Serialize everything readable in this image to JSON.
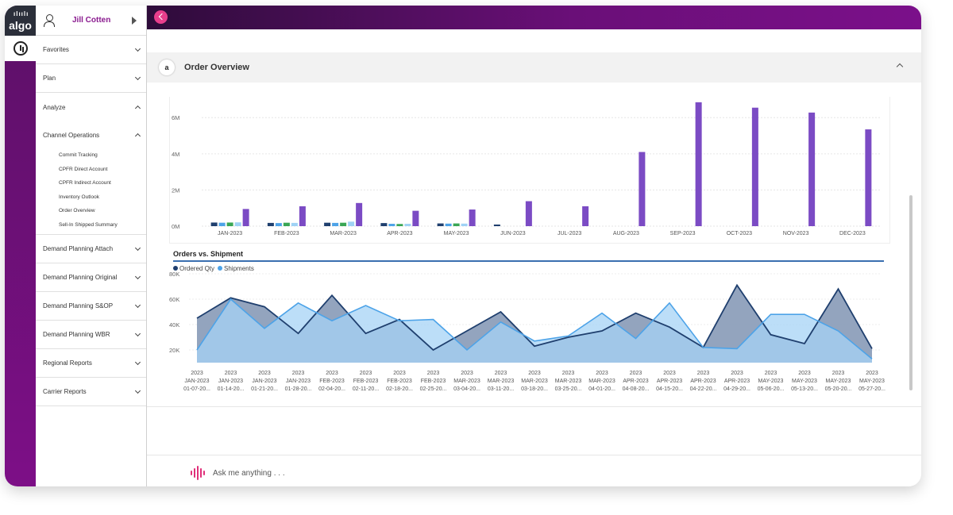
{
  "app": {
    "logo_text": "algo",
    "user_name": "Jill Cotten"
  },
  "sidebar": {
    "items": [
      {
        "label": "Favorites",
        "expanded": false
      },
      {
        "label": "Plan",
        "expanded": false
      },
      {
        "label": "Analyze",
        "expanded": true
      },
      {
        "label": "Channel Operations",
        "expanded": true,
        "children": [
          "Commit Tracking",
          "CPFR Direct Account",
          "CPFR Indirect Account",
          "Inventory Outlook",
          "Order Overview",
          "Sell-In Shipped Summary"
        ]
      },
      {
        "label": "Demand Planning Attach",
        "expanded": false
      },
      {
        "label": "Demand Planning Original",
        "expanded": false
      },
      {
        "label": "Demand Planning S&OP",
        "expanded": false
      },
      {
        "label": "Demand Planning WBR",
        "expanded": false
      },
      {
        "label": "Regional Reports",
        "expanded": false
      },
      {
        "label": "Carrier Reports",
        "expanded": false
      }
    ]
  },
  "panel": {
    "icon_text": "a",
    "title": "Order Overview"
  },
  "chat": {
    "placeholder": "Ask me anything . . ."
  },
  "colors": {
    "brand_purple": "#7a1086",
    "back_button": "#e83e8c",
    "bar_purple": "#7b4bc4",
    "ordered_qty": "#1f3f6e",
    "shipments": "#4da3e8"
  },
  "chart_data": [
    {
      "type": "bar",
      "categories": [
        "JAN-2023",
        "FEB-2023",
        "MAR-2023",
        "APR-2023",
        "MAY-2023",
        "JUN-2023",
        "JUL-2023",
        "AUG-2023",
        "SEP-2023",
        "OCT-2023",
        "NOV-2023",
        "DEC-2023"
      ],
      "yticks": [
        "0M",
        "2M",
        "4M",
        "6M"
      ],
      "ylim": [
        0,
        6800000
      ],
      "series": [
        {
          "color": "#1f3f6e",
          "values": [
            200000,
            180000,
            190000,
            170000,
            150000,
            90000,
            0,
            0,
            0,
            0,
            0,
            0
          ]
        },
        {
          "color": "#4da3e8",
          "values": [
            190000,
            170000,
            180000,
            130000,
            140000,
            0,
            0,
            0,
            0,
            0,
            0,
            0
          ]
        },
        {
          "color": "#3aa655",
          "values": [
            200000,
            190000,
            190000,
            120000,
            150000,
            0,
            0,
            0,
            0,
            0,
            0,
            0
          ]
        },
        {
          "color": "#9fd2f5",
          "values": [
            210000,
            180000,
            250000,
            130000,
            140000,
            0,
            0,
            0,
            0,
            0,
            0,
            0
          ]
        },
        {
          "color": "#7b4bc4",
          "values": [
            950000,
            1100000,
            1280000,
            850000,
            920000,
            1380000,
            1100000,
            4100000,
            6850000,
            6550000,
            6280000,
            5350000
          ]
        }
      ]
    },
    {
      "type": "area",
      "title": "Orders vs. Shipment",
      "legend_position": "top-left",
      "yticks": [
        "20K",
        "40K",
        "60K",
        "80K"
      ],
      "ylim": [
        10000,
        80000
      ],
      "categories": [
        [
          "2023",
          "JAN-2023",
          "01-07-20..."
        ],
        [
          "2023",
          "JAN-2023",
          "01-14-20..."
        ],
        [
          "2023",
          "JAN-2023",
          "01-21-20..."
        ],
        [
          "2023",
          "JAN-2023",
          "01-28-20..."
        ],
        [
          "2023",
          "FEB-2023",
          "02-04-20..."
        ],
        [
          "2023",
          "FEB-2023",
          "02-11-20..."
        ],
        [
          "2023",
          "FEB-2023",
          "02-18-20..."
        ],
        [
          "2023",
          "FEB-2023",
          "02-25-20..."
        ],
        [
          "2023",
          "MAR-2023",
          "03-04-20..."
        ],
        [
          "2023",
          "MAR-2023",
          "03-11-20..."
        ],
        [
          "2023",
          "MAR-2023",
          "03-18-20..."
        ],
        [
          "2023",
          "MAR-2023",
          "03-25-20..."
        ],
        [
          "2023",
          "MAR-2023",
          "04-01-20..."
        ],
        [
          "2023",
          "APR-2023",
          "04-08-20..."
        ],
        [
          "2023",
          "APR-2023",
          "04-15-20..."
        ],
        [
          "2023",
          "APR-2023",
          "04-22-20..."
        ],
        [
          "2023",
          "APR-2023",
          "04-29-20..."
        ],
        [
          "2023",
          "MAY-2023",
          "05-06-20..."
        ],
        [
          "2023",
          "MAY-2023",
          "05-13-20..."
        ],
        [
          "2023",
          "MAY-2023",
          "05-20-20..."
        ],
        [
          "2023",
          "MAY-2023",
          "05-27-20..."
        ]
      ],
      "series": [
        {
          "name": "Ordered Qty",
          "color": "#1f3f6e",
          "fill": "#8d9fbb",
          "values": [
            45000,
            61000,
            54000,
            33000,
            63000,
            33000,
            44000,
            20000,
            35000,
            50000,
            23000,
            30000,
            35000,
            49000,
            38000,
            22000,
            71000,
            32000,
            25000,
            68000,
            21000
          ]
        },
        {
          "name": "Shipments",
          "color": "#4da3e8",
          "fill": "#a6d3f6",
          "values": [
            20000,
            60000,
            37000,
            57000,
            43000,
            55000,
            43000,
            44000,
            20000,
            42000,
            27000,
            31000,
            49000,
            29000,
            57000,
            22000,
            21000,
            48000,
            48000,
            35000,
            13000
          ]
        }
      ]
    }
  ]
}
